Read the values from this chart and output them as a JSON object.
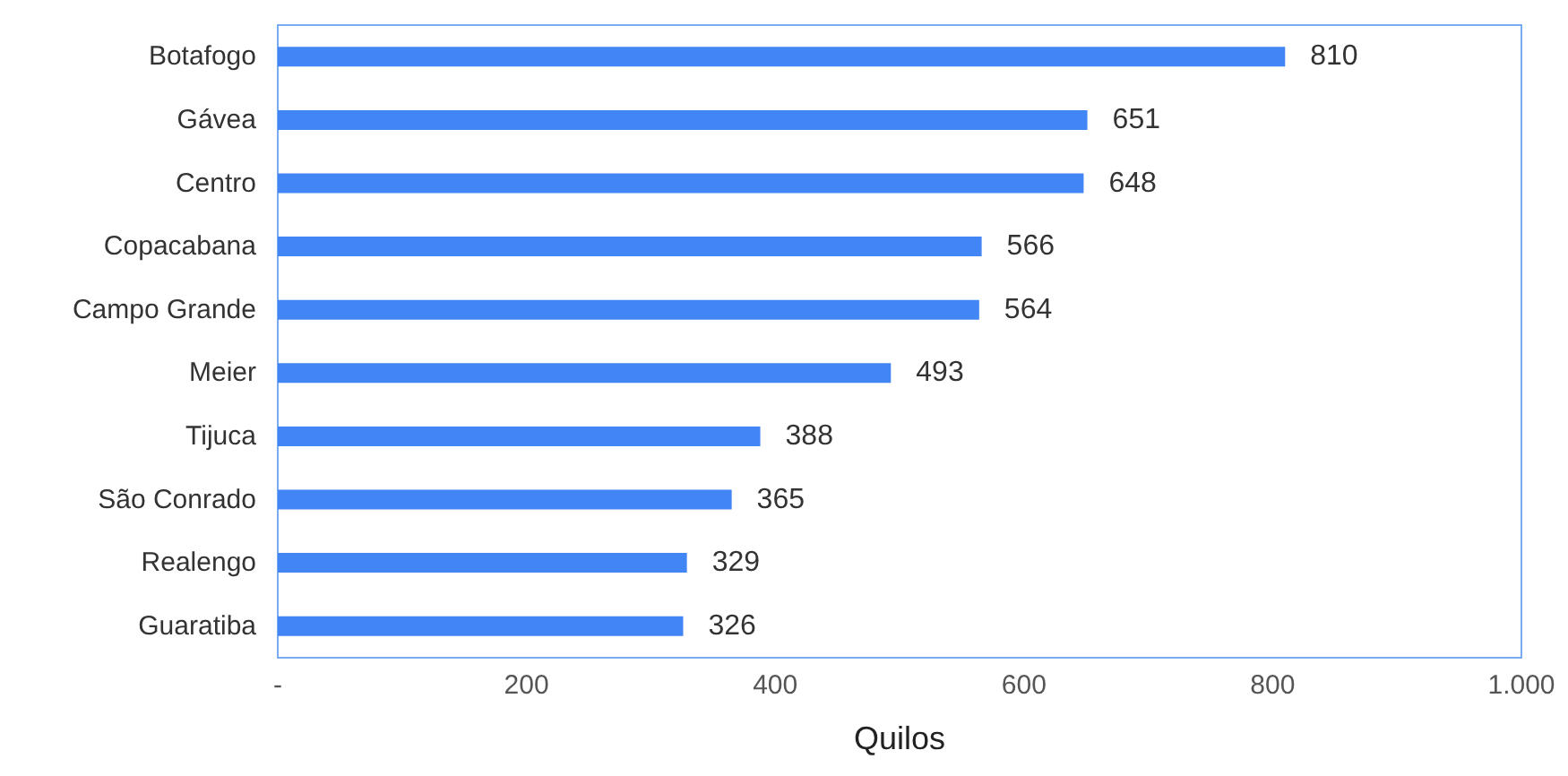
{
  "chart_data": {
    "type": "bar",
    "orientation": "horizontal",
    "xlabel": "Quilos",
    "categories": [
      "Botafogo",
      "Gávea",
      "Centro",
      "Copacabana",
      "Campo Grande",
      "Meier",
      "Tijuca",
      "São Conrado",
      "Realengo",
      "Guaratiba"
    ],
    "values": [
      810,
      651,
      648,
      566,
      564,
      493,
      388,
      365,
      329,
      326
    ],
    "color": "#4285f4",
    "data_labels": true,
    "grid": false,
    "xlim": [
      0,
      1000
    ],
    "xticks": [
      {
        "value": 0,
        "label": "-"
      },
      200,
      400,
      600,
      800,
      {
        "value": 1000,
        "label": "1.000"
      }
    ]
  }
}
